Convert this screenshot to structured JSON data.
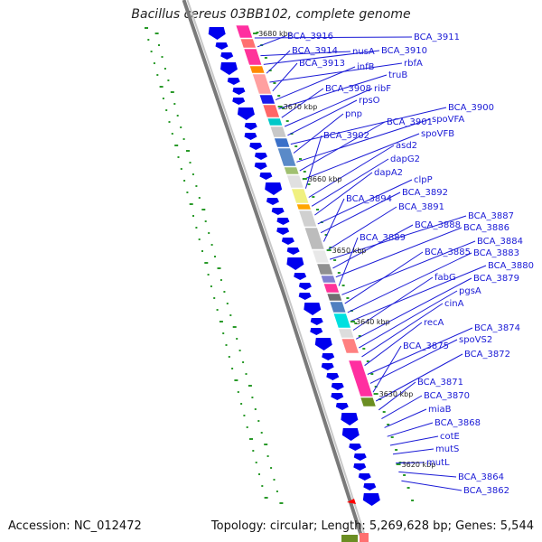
{
  "title": "Bacillus cereus 03BB102, complete genome",
  "footer": {
    "accession": "Accession: NC_012472",
    "topology": "Topology: circular; Length: 5,269,628 bp; Genes: 5,544"
  },
  "colors": {
    "gene_arrow": "#0000ee",
    "label": "#1a1ad6",
    "backbone": "#888888",
    "gc_dots": "#2a9a2a"
  },
  "kbp_ticks": [
    "3680 kbp",
    "3670 kbp",
    "3660 kbp",
    "3650 kbp",
    "3640 kbp",
    "3630 kbp",
    "3620 kbp"
  ],
  "gene_labels": [
    "BCA_3911",
    "BCA_3916",
    "nusA",
    "BCA_3910",
    "BCA_3914",
    "rbfA",
    "BCA_3913",
    "infB",
    "truB",
    "BCA_3908",
    "ribF",
    "rpsO",
    "BCA_3900",
    "pnp",
    "spoVFA",
    "BCA_3901",
    "spoVFB",
    "BCA_3902",
    "asd2",
    "dapG2",
    "dapA2",
    "clpP",
    "BCA_3892",
    "BCA_3894",
    "BCA_3891",
    "BCA_3887",
    "BCA_3888",
    "BCA_3886",
    "BCA_3889",
    "BCA_3884",
    "BCA_3885",
    "BCA_3883",
    "BCA_3880",
    "fabG",
    "BCA_3879",
    "pgsA",
    "cinA",
    "recA",
    "BCA_3874",
    "spoVS2",
    "BCA_3875",
    "BCA_3872",
    "BCA_3871",
    "BCA_3870",
    "miaB",
    "BCA_3868",
    "cotE",
    "mutS",
    "mutL",
    "BCA_3864",
    "BCA_3862"
  ]
}
